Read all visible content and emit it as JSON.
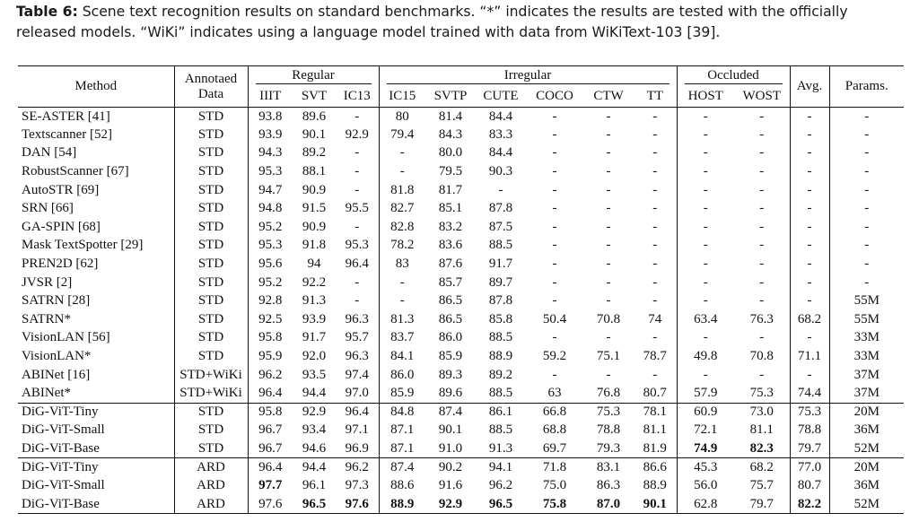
{
  "caption": {
    "label": "Table 6:",
    "text": "Scene text recognition results on standard benchmarks. “*” indicates the results are tested with the officially released models. “WiKi” indicates using a language model trained with data from WiKiText-103 [39]."
  },
  "headers": {
    "method": "Method",
    "data_l1": "Annotaed",
    "data_l2": "Data",
    "groups": {
      "regular": "Regular",
      "irregular": "Irregular",
      "occluded": "Occluded"
    },
    "avg": "Avg.",
    "params": "Params.",
    "cols": [
      "IIIT",
      "SVT",
      "IC13",
      "IC15",
      "SVTP",
      "CUTE",
      "COCO",
      "CTW",
      "TT",
      "HOST",
      "WOST"
    ]
  },
  "groups": [
    {
      "rows": [
        {
          "method": "SE-ASTER [41]",
          "data": "STD",
          "vals": [
            "93.8",
            "89.6",
            "-",
            "80",
            "81.4",
            "84.4",
            "-",
            "-",
            "-",
            "-",
            "-"
          ],
          "avg": "-",
          "params": "-"
        },
        {
          "method": "Textscanner [52]",
          "data": "STD",
          "vals": [
            "93.9",
            "90.1",
            "92.9",
            "79.4",
            "84.3",
            "83.3",
            "-",
            "-",
            "-",
            "-",
            "-"
          ],
          "avg": "-",
          "params": "-"
        },
        {
          "method": "DAN [54]",
          "data": "STD",
          "vals": [
            "94.3",
            "89.2",
            "-",
            "-",
            "80.0",
            "84.4",
            "-",
            "-",
            "-",
            "-",
            "-"
          ],
          "avg": "-",
          "params": "-"
        },
        {
          "method": "RobustScanner [67]",
          "data": "STD",
          "vals": [
            "95.3",
            "88.1",
            "-",
            "-",
            "79.5",
            "90.3",
            "-",
            "-",
            "-",
            "-",
            "-"
          ],
          "avg": "-",
          "params": "-"
        },
        {
          "method": "AutoSTR [69]",
          "data": "STD",
          "vals": [
            "94.7",
            "90.9",
            "-",
            "81.8",
            "81.7",
            "-",
            "-",
            "-",
            "-",
            "-",
            "-"
          ],
          "avg": "-",
          "params": "-"
        },
        {
          "method": "SRN [66]",
          "data": "STD",
          "vals": [
            "94.8",
            "91.5",
            "95.5",
            "82.7",
            "85.1",
            "87.8",
            "-",
            "-",
            "-",
            "-",
            "-"
          ],
          "avg": "-",
          "params": "-"
        },
        {
          "method": "GA-SPIN [68]",
          "data": "STD",
          "vals": [
            "95.2",
            "90.9",
            "-",
            "82.8",
            "83.2",
            "87.5",
            "-",
            "-",
            "-",
            "-",
            "-"
          ],
          "avg": "-",
          "params": "-"
        },
        {
          "method": "Mask TextSpotter [29]",
          "data": "STD",
          "vals": [
            "95.3",
            "91.8",
            "95.3",
            "78.2",
            "83.6",
            "88.5",
            "-",
            "-",
            "-",
            "-",
            "-"
          ],
          "avg": "-",
          "params": "-"
        },
        {
          "method": "PREN2D [62]",
          "data": "STD",
          "vals": [
            "95.6",
            "94",
            "96.4",
            "83",
            "87.6",
            "91.7",
            "-",
            "-",
            "-",
            "-",
            "-"
          ],
          "avg": "-",
          "params": "-"
        },
        {
          "method": "JVSR [2]",
          "data": "STD",
          "vals": [
            "95.2",
            "92.2",
            "-",
            "-",
            "85.7",
            "89.7",
            "-",
            "-",
            "-",
            "-",
            "-"
          ],
          "avg": "-",
          "params": "-"
        },
        {
          "method": "SATRN [28]",
          "data": "STD",
          "vals": [
            "92.8",
            "91.3",
            "-",
            "-",
            "86.5",
            "87.8",
            "-",
            "-",
            "-",
            "-",
            "-"
          ],
          "avg": "-",
          "params": "55M"
        },
        {
          "method": "SATRN*",
          "data": "STD",
          "vals": [
            "92.5",
            "93.9",
            "96.3",
            "81.3",
            "86.5",
            "85.8",
            "50.4",
            "70.8",
            "74",
            "63.4",
            "76.3"
          ],
          "avg": "68.2",
          "params": "55M"
        },
        {
          "method": "VisionLAN [56]",
          "data": "STD",
          "vals": [
            "95.8",
            "91.7",
            "95.7",
            "83.7",
            "86.0",
            "88.5",
            "-",
            "-",
            "-",
            "-",
            "-"
          ],
          "avg": "-",
          "params": "33M"
        },
        {
          "method": "VisionLAN*",
          "data": "STD",
          "vals": [
            "95.9",
            "92.0",
            "96.3",
            "84.1",
            "85.9",
            "88.9",
            "59.2",
            "75.1",
            "78.7",
            "49.8",
            "70.8"
          ],
          "avg": "71.1",
          "params": "33M"
        },
        {
          "method": "ABINet [16]",
          "data": "STD+WiKi",
          "vals": [
            "96.2",
            "93.5",
            "97.4",
            "86.0",
            "89.3",
            "89.2",
            "-",
            "-",
            "-",
            "-",
            "-"
          ],
          "avg": "-",
          "params": "37M"
        },
        {
          "method": "ABINet*",
          "data": "STD+WiKi",
          "vals": [
            "96.4",
            "94.4",
            "97.0",
            "85.9",
            "89.6",
            "88.5",
            "63",
            "76.8",
            "80.7",
            "57.9",
            "75.3"
          ],
          "avg": "74.4",
          "params": "37M"
        }
      ]
    },
    {
      "rows": [
        {
          "method": "DiG-ViT-Tiny",
          "data": "STD",
          "vals": [
            "95.8",
            "92.9",
            "96.4",
            "84.8",
            "87.4",
            "86.1",
            "66.8",
            "75.3",
            "78.1",
            "60.9",
            "73.0"
          ],
          "avg": "75.3",
          "params": "20M"
        },
        {
          "method": "DiG-ViT-Small",
          "data": "STD",
          "vals": [
            "96.7",
            "93.4",
            "97.1",
            "87.1",
            "90.1",
            "88.5",
            "68.8",
            "78.8",
            "81.1",
            "72.1",
            "81.1"
          ],
          "avg": "78.8",
          "params": "36M"
        },
        {
          "method": "DiG-ViT-Base",
          "data": "STD",
          "vals": [
            "96.7",
            "94.6",
            "96.9",
            "87.1",
            "91.0",
            "91.3",
            "69.7",
            "79.3",
            "81.9",
            "74.9",
            "82.3"
          ],
          "avg": "79.7",
          "params": "52M"
        }
      ]
    },
    {
      "rows": [
        {
          "method": "DiG-ViT-Tiny",
          "data": "ARD",
          "vals": [
            "96.4",
            "94.4",
            "96.2",
            "87.4",
            "90.2",
            "94.1",
            "71.8",
            "83.1",
            "86.6",
            "45.3",
            "68.2"
          ],
          "avg": "77.0",
          "params": "20M"
        },
        {
          "method": "DiG-ViT-Small",
          "data": "ARD",
          "vals": [
            "97.7",
            "96.1",
            "97.3",
            "88.6",
            "91.6",
            "96.2",
            "75.0",
            "86.3",
            "88.9",
            "56.0",
            "75.7"
          ],
          "avg": "80.7",
          "params": "36M"
        },
        {
          "method": "DiG-ViT-Base",
          "data": "ARD",
          "vals": [
            "97.6",
            "96.5",
            "97.6",
            "88.9",
            "92.9",
            "96.5",
            "75.8",
            "87.0",
            "90.1",
            "62.8",
            "79.7"
          ],
          "avg": "82.2",
          "params": "52M"
        }
      ]
    }
  ],
  "bold_cells": [
    [
      1,
      2,
      9
    ],
    [
      1,
      2,
      10
    ],
    [
      2,
      1,
      0
    ],
    [
      2,
      2,
      1
    ],
    [
      2,
      2,
      2
    ],
    [
      2,
      2,
      3
    ],
    [
      2,
      2,
      4
    ],
    [
      2,
      2,
      5
    ],
    [
      2,
      2,
      6
    ],
    [
      2,
      2,
      7
    ],
    [
      2,
      2,
      8
    ],
    [
      2,
      2,
      "avg"
    ]
  ]
}
